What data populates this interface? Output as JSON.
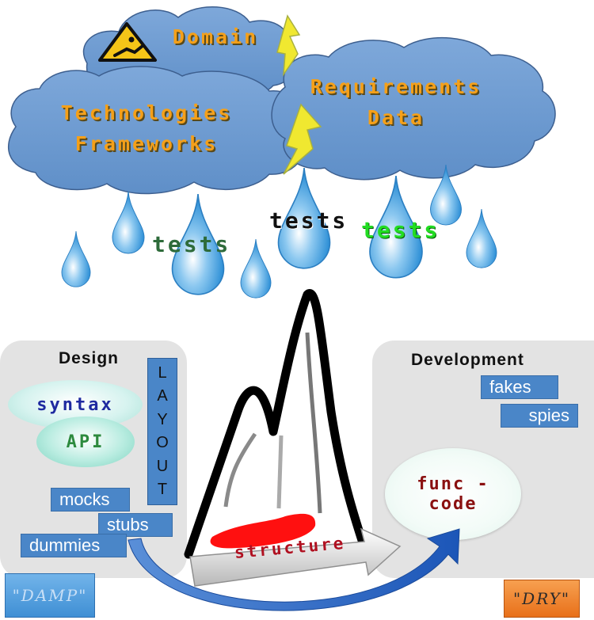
{
  "clouds": {
    "domain": "Domain",
    "requirements_line1": "Requirements",
    "requirements_line2": "Data",
    "technologies_line1": "Technologies",
    "technologies_line2": "Frameworks"
  },
  "rain": {
    "tests_left": "tests",
    "tests_center": "tests",
    "tests_right": "tests"
  },
  "design_panel": {
    "title": "Design",
    "layout_letters": [
      "L",
      "A",
      "Y",
      "O",
      "U",
      "T"
    ],
    "syntax": "syntax",
    "api": "API",
    "mocks": "mocks",
    "stubs": "stubs",
    "dummies": "dummies"
  },
  "development_panel": {
    "title": "Development",
    "fakes": "fakes",
    "spies": "spies",
    "func_line1": "func -",
    "func_line2": "code"
  },
  "structure_label": "structure",
  "badges": {
    "damp": "\"DAMP\"",
    "dry": "\"DRY\""
  },
  "colors": {
    "cloud_fill": "#6e9bd0",
    "cloud_text": "#f5a019",
    "drop": "#3f9fe0",
    "panel": "#e3e3e3",
    "box_blue": "#4a86c8",
    "tests_left": "#2e6b3a",
    "tests_center": "#111111",
    "tests_right": "#22dd22",
    "structure_text": "#b01020",
    "damp_bg": "#4f9bd8",
    "dry_bg": "#f07a20"
  },
  "icons": [
    "warning-sign-icon",
    "lightning-bolt-icon",
    "raindrop-icon",
    "mountain-icon",
    "arrow-icon"
  ]
}
